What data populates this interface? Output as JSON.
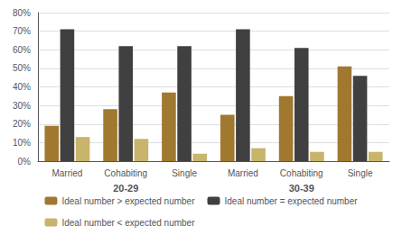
{
  "chart_data": {
    "type": "bar",
    "categories": [
      "Married",
      "Cohabiting",
      "Single",
      "Married",
      "Cohabiting",
      "Single"
    ],
    "series": [
      {
        "name": "Ideal number > expected number",
        "color": "#a07830",
        "values": [
          19,
          28,
          37,
          25,
          35,
          51
        ]
      },
      {
        "name": "Ideal number = expected number",
        "color": "#404040",
        "values": [
          71,
          62,
          62,
          71,
          61,
          46
        ]
      },
      {
        "name": "Ideal number < expected number",
        "color": "#c8b46a",
        "values": [
          13,
          12,
          4,
          7,
          5,
          5
        ]
      }
    ],
    "annotations": [
      "20-29",
      "30-39"
    ],
    "ylim": [
      0,
      80
    ],
    "yticks": [
      {
        "value": 0,
        "label": "0%"
      },
      {
        "value": 10,
        "label": "10%"
      },
      {
        "value": 20,
        "label": "20%"
      },
      {
        "value": 30,
        "label": "30%"
      },
      {
        "value": 40,
        "label": "40%"
      },
      {
        "value": 50,
        "label": "50%"
      },
      {
        "value": 60,
        "label": "60%"
      },
      {
        "value": 70,
        "label": "70%"
      },
      {
        "value": 80,
        "label": "80%"
      }
    ],
    "grid": true,
    "legend": "bottom"
  }
}
